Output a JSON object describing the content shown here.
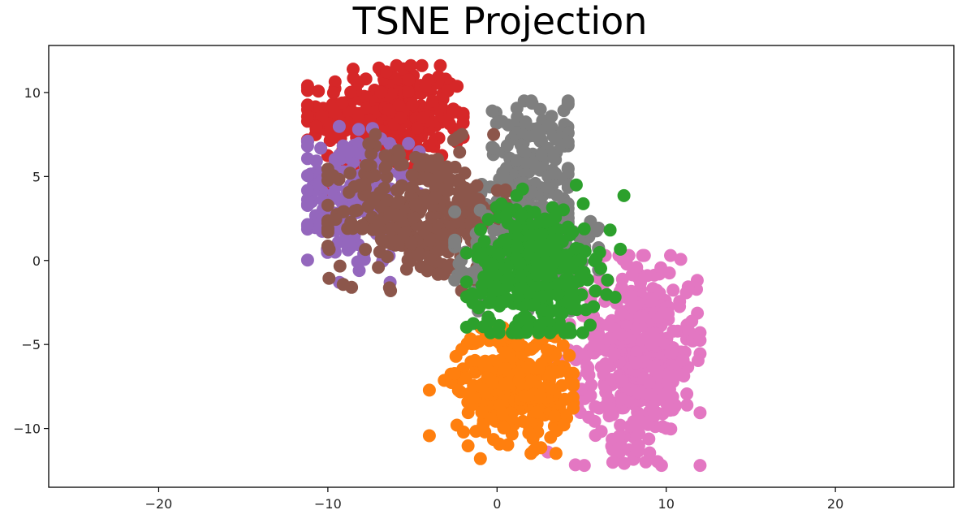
{
  "chart_data": {
    "type": "scatter",
    "title": "TSNE Projection",
    "xlabel": "",
    "ylabel": "",
    "xlim": [
      -26.5,
      27
    ],
    "ylim": [
      -13.5,
      12.8
    ],
    "xticks": [
      -20,
      -10,
      0,
      10,
      20
    ],
    "yticks": [
      -10,
      -5,
      0,
      5,
      10
    ],
    "xtick_labels": [
      "−20",
      "−10",
      "0",
      "10",
      "20"
    ],
    "ytick_labels": [
      "−10",
      "−5",
      "0",
      "5",
      "10"
    ],
    "grid": false,
    "legend": "none",
    "clusters": [
      {
        "color": "#d62728",
        "cx": -6.5,
        "cy": 8.5,
        "sx": 2.3,
        "sy": 1.6,
        "n": 330,
        "bounds": {
          "x": [
            -11.2,
            -2.0
          ],
          "y": [
            4.0,
            11.6
          ]
        }
      },
      {
        "color": "#7f7f7f",
        "cx": 2.2,
        "cy": 5.0,
        "sx": 1.5,
        "sy": 2.2,
        "n": 200,
        "bounds": {
          "x": [
            -2.5,
            4.2
          ],
          "y": [
            0.5,
            9.5
          ]
        }
      },
      {
        "color": "#9467bd",
        "cx": -8.5,
        "cy": 3.8,
        "sx": 1.6,
        "sy": 2.0,
        "n": 170,
        "bounds": {
          "x": [
            -11.2,
            -4.6
          ],
          "y": [
            -1.3,
            8.0
          ]
        }
      },
      {
        "color": "#8c564b",
        "cx": -4.5,
        "cy": 2.8,
        "sx": 2.6,
        "sy": 2.0,
        "n": 330,
        "bounds": {
          "x": [
            -10.0,
            0.5
          ],
          "y": [
            -1.8,
            7.5
          ]
        }
      },
      {
        "color": "#e377c2",
        "cx": 8.3,
        "cy": -5.5,
        "sx": 1.8,
        "sy": 2.8,
        "n": 440,
        "bounds": {
          "x": [
            3.0,
            12.0
          ],
          "y": [
            -12.2,
            0.3
          ]
        }
      },
      {
        "color": "#ff7f0e",
        "cx": 1.0,
        "cy": -7.3,
        "sx": 1.7,
        "sy": 1.7,
        "n": 330,
        "bounds": {
          "x": [
            -4.0,
            4.5
          ],
          "y": [
            -11.8,
            -4.0
          ]
        }
      },
      {
        "color": "#7f7f7f",
        "cx": 1.5,
        "cy": 0.3,
        "sx": 2.2,
        "sy": 1.4,
        "n": 140,
        "bounds": {
          "x": [
            -2.5,
            6.0
          ],
          "y": [
            -3.0,
            3.0
          ]
        }
      },
      {
        "color": "#2ca02c",
        "cx": 2.3,
        "cy": -0.5,
        "sx": 1.8,
        "sy": 2.0,
        "n": 380,
        "bounds": {
          "x": [
            -1.8,
            7.5
          ],
          "y": [
            -4.3,
            4.5
          ]
        }
      }
    ]
  }
}
